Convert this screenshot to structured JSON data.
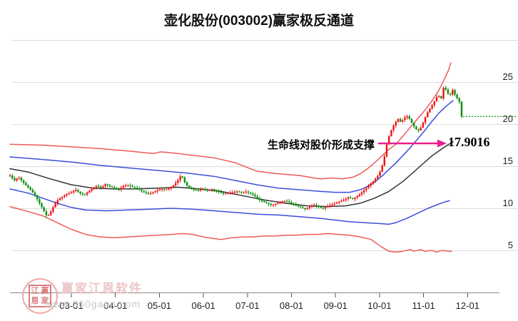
{
  "window": {
    "title": "壶化股份(003002)赢家极反通道"
  },
  "chart_data": {
    "type": "candlestick",
    "title": "壶化股份(003002)赢家极反通道",
    "symbol": "壶化股份",
    "code": "003002",
    "indicator": "赢家极反通道",
    "y_axis": {
      "ticks": [
        25,
        20,
        15,
        10,
        5
      ],
      "unlabeled_gridlines": [
        30
      ],
      "range": [
        0,
        30
      ]
    },
    "x_axis": {
      "labels": [
        "03-01",
        "04-01",
        "05-01",
        "06-01",
        "07-01",
        "08-01",
        "09-01",
        "10-01",
        "11-01",
        "12-01"
      ]
    },
    "last_price": 20.9,
    "annotation": {
      "text": "生命线对股价形成支撑",
      "value": "17.9016",
      "arrow_color": "#eb1e8c"
    },
    "price_path": [
      [
        14,
        13.9
      ],
      [
        20,
        13.3
      ],
      [
        26,
        13.7
      ],
      [
        32,
        13.1
      ],
      [
        38,
        12.6
      ],
      [
        44,
        12.1
      ],
      [
        50,
        11.4
      ],
      [
        56,
        10.5
      ],
      [
        62,
        9.6
      ],
      [
        66,
        9.0
      ],
      [
        70,
        9.4
      ],
      [
        76,
        10.4
      ],
      [
        82,
        11.1
      ],
      [
        88,
        11.4
      ],
      [
        94,
        11.7
      ],
      [
        100,
        11.9
      ],
      [
        106,
        12.2
      ],
      [
        112,
        11.8
      ],
      [
        118,
        11.6
      ],
      [
        124,
        12.0
      ],
      [
        130,
        12.4
      ],
      [
        136,
        12.7
      ],
      [
        142,
        12.4
      ],
      [
        148,
        12.9
      ],
      [
        154,
        12.6
      ],
      [
        160,
        12.4
      ],
      [
        166,
        12.2
      ],
      [
        172,
        12.6
      ],
      [
        178,
        12.8
      ],
      [
        184,
        12.6
      ],
      [
        190,
        12.4
      ],
      [
        196,
        12.2
      ],
      [
        202,
        11.9
      ],
      [
        208,
        11.7
      ],
      [
        214,
        11.9
      ],
      [
        220,
        12.1
      ],
      [
        226,
        12.3
      ],
      [
        232,
        12.2
      ],
      [
        238,
        12.4
      ],
      [
        244,
        12.8
      ],
      [
        250,
        13.4
      ],
      [
        254,
        14.0
      ],
      [
        258,
        13.2
      ],
      [
        262,
        12.7
      ],
      [
        266,
        12.4
      ],
      [
        272,
        12.2
      ],
      [
        278,
        12.1
      ],
      [
        284,
        12.3
      ],
      [
        290,
        12.1
      ],
      [
        296,
        12.3
      ],
      [
        302,
        12.1
      ],
      [
        308,
        11.9
      ],
      [
        314,
        11.7
      ],
      [
        320,
        11.8
      ],
      [
        326,
        11.9
      ],
      [
        332,
        12.0
      ],
      [
        338,
        11.9
      ],
      [
        344,
        12.0
      ],
      [
        350,
        11.8
      ],
      [
        356,
        11.5
      ],
      [
        362,
        11.1
      ],
      [
        368,
        10.8
      ],
      [
        374,
        10.6
      ],
      [
        380,
        10.4
      ],
      [
        386,
        10.5
      ],
      [
        392,
        10.7
      ],
      [
        398,
        10.9
      ],
      [
        404,
        10.8
      ],
      [
        410,
        10.5
      ],
      [
        416,
        10.3
      ],
      [
        422,
        10.1
      ],
      [
        428,
        9.9
      ],
      [
        434,
        10.2
      ],
      [
        440,
        10.4
      ],
      [
        446,
        10.2
      ],
      [
        452,
        10.0
      ],
      [
        458,
        10.2
      ],
      [
        464,
        10.4
      ],
      [
        470,
        10.6
      ],
      [
        476,
        10.8
      ],
      [
        482,
        11.0
      ],
      [
        488,
        11.3
      ],
      [
        494,
        11.1
      ],
      [
        500,
        11.4
      ],
      [
        506,
        11.8
      ],
      [
        512,
        12.3
      ],
      [
        518,
        12.8
      ],
      [
        524,
        13.3
      ],
      [
        530,
        13.9
      ],
      [
        534,
        14.6
      ],
      [
        538,
        15.8
      ],
      [
        542,
        17.6
      ],
      [
        546,
        18.8
      ],
      [
        550,
        19.6
      ],
      [
        554,
        20.2
      ],
      [
        558,
        20.6
      ],
      [
        562,
        20.2
      ],
      [
        566,
        20.7
      ],
      [
        570,
        21.0
      ],
      [
        574,
        20.6
      ],
      [
        578,
        20.0
      ],
      [
        582,
        19.5
      ],
      [
        586,
        19.2
      ],
      [
        590,
        19.6
      ],
      [
        594,
        20.4
      ],
      [
        598,
        21.2
      ],
      [
        602,
        21.8
      ],
      [
        606,
        22.3
      ],
      [
        610,
        22.9
      ],
      [
        614,
        23.5
      ],
      [
        618,
        22.9
      ],
      [
        622,
        24.5
      ],
      [
        626,
        23.9
      ],
      [
        630,
        23.3
      ],
      [
        634,
        24.1
      ],
      [
        638,
        23.4
      ],
      [
        642,
        22.9
      ],
      [
        645,
        22.5
      ],
      [
        647,
        20.9
      ]
    ],
    "lines": {
      "upper_red": [
        [
          14,
          17.6
        ],
        [
          60,
          17.5
        ],
        [
          100,
          17.3
        ],
        [
          140,
          17.1
        ],
        [
          180,
          16.8
        ],
        [
          215,
          16.5
        ],
        [
          225,
          16.7
        ],
        [
          240,
          16.6
        ],
        [
          270,
          16.3
        ],
        [
          300,
          16.0
        ],
        [
          330,
          15.4
        ],
        [
          345,
          14.9
        ],
        [
          360,
          14.4
        ],
        [
          390,
          14.1
        ],
        [
          420,
          13.9
        ],
        [
          440,
          13.6
        ],
        [
          450,
          13.5
        ],
        [
          465,
          13.6
        ],
        [
          480,
          13.5
        ],
        [
          495,
          13.7
        ],
        [
          505,
          14.1
        ],
        [
          515,
          14.7
        ],
        [
          525,
          15.4
        ],
        [
          535,
          16.2
        ],
        [
          545,
          17.0
        ],
        [
          555,
          17.6
        ],
        [
          565,
          18.6
        ],
        [
          575,
          19.6
        ],
        [
          585,
          20.6
        ],
        [
          595,
          21.6
        ],
        [
          605,
          22.7
        ],
        [
          615,
          24.0
        ],
        [
          622,
          25.2
        ],
        [
          628,
          26.3
        ],
        [
          632,
          27.3
        ]
      ],
      "upper_blue": [
        [
          14,
          16.1
        ],
        [
          60,
          15.8
        ],
        [
          100,
          15.5
        ],
        [
          140,
          15.1
        ],
        [
          180,
          14.8
        ],
        [
          220,
          14.5
        ],
        [
          260,
          14.2
        ],
        [
          300,
          13.8
        ],
        [
          330,
          13.3
        ],
        [
          360,
          12.8
        ],
        [
          390,
          12.4
        ],
        [
          420,
          12.2
        ],
        [
          450,
          12.0
        ],
        [
          470,
          11.9
        ],
        [
          490,
          11.9
        ],
        [
          505,
          12.2
        ],
        [
          515,
          12.6
        ],
        [
          525,
          13.1
        ],
        [
          535,
          13.8
        ],
        [
          545,
          14.6
        ],
        [
          555,
          15.4
        ],
        [
          565,
          16.3
        ],
        [
          575,
          17.2
        ],
        [
          585,
          18.2
        ],
        [
          595,
          19.2
        ],
        [
          605,
          20.3
        ],
        [
          615,
          21.3
        ],
        [
          625,
          22.1
        ],
        [
          635,
          22.8
        ]
      ],
      "life_line": [
        [
          14,
          14.7
        ],
        [
          40,
          14.3
        ],
        [
          70,
          13.5
        ],
        [
          100,
          12.8
        ],
        [
          130,
          12.4
        ],
        [
          160,
          12.3
        ],
        [
          190,
          12.3
        ],
        [
          220,
          12.4
        ],
        [
          250,
          12.5
        ],
        [
          280,
          12.3
        ],
        [
          310,
          12.0
        ],
        [
          340,
          11.5
        ],
        [
          370,
          11.0
        ],
        [
          400,
          10.6
        ],
        [
          430,
          10.3
        ],
        [
          460,
          10.2
        ],
        [
          485,
          10.3
        ],
        [
          505,
          10.6
        ],
        [
          525,
          11.2
        ],
        [
          545,
          12.0
        ],
        [
          565,
          13.2
        ],
        [
          585,
          14.7
        ],
        [
          605,
          16.2
        ],
        [
          625,
          17.4
        ],
        [
          635,
          17.9
        ]
      ],
      "lower_blue": [
        [
          14,
          12.3
        ],
        [
          40,
          11.8
        ],
        [
          60,
          11.2
        ],
        [
          80,
          10.6
        ],
        [
          100,
          10.1
        ],
        [
          120,
          9.8
        ],
        [
          150,
          9.7
        ],
        [
          180,
          9.8
        ],
        [
          210,
          9.9
        ],
        [
          240,
          10.0
        ],
        [
          270,
          9.9
        ],
        [
          300,
          9.7
        ],
        [
          330,
          9.5
        ],
        [
          360,
          9.3
        ],
        [
          390,
          9.2
        ],
        [
          420,
          9.0
        ],
        [
          450,
          8.8
        ],
        [
          470,
          8.6
        ],
        [
          490,
          8.4
        ],
        [
          510,
          8.3
        ],
        [
          530,
          8.2
        ],
        [
          545,
          8.1
        ],
        [
          555,
          8.3
        ],
        [
          570,
          8.8
        ],
        [
          585,
          9.4
        ],
        [
          600,
          10.0
        ],
        [
          615,
          10.5
        ],
        [
          625,
          10.8
        ],
        [
          630,
          10.9
        ]
      ],
      "lower_red": [
        [
          14,
          10.2
        ],
        [
          40,
          9.6
        ],
        [
          60,
          9.1
        ],
        [
          80,
          8.3
        ],
        [
          100,
          7.5
        ],
        [
          120,
          6.9
        ],
        [
          140,
          6.6
        ],
        [
          160,
          6.5
        ],
        [
          180,
          6.6
        ],
        [
          200,
          6.7
        ],
        [
          220,
          6.8
        ],
        [
          240,
          6.9
        ],
        [
          255,
          7.0
        ],
        [
          270,
          6.9
        ],
        [
          285,
          6.6
        ],
        [
          300,
          6.4
        ],
        [
          310,
          6.3
        ],
        [
          325,
          6.5
        ],
        [
          340,
          6.6
        ],
        [
          355,
          6.6
        ],
        [
          370,
          6.7
        ],
        [
          385,
          6.7
        ],
        [
          400,
          6.8
        ],
        [
          415,
          6.8
        ],
        [
          430,
          6.9
        ],
        [
          445,
          6.9
        ],
        [
          460,
          7.0
        ],
        [
          475,
          6.9
        ],
        [
          490,
          6.8
        ],
        [
          505,
          6.6
        ],
        [
          520,
          6.3
        ],
        [
          535,
          5.4
        ],
        [
          545,
          4.9
        ],
        [
          555,
          4.8
        ],
        [
          565,
          4.9
        ],
        [
          575,
          5.1
        ],
        [
          580,
          4.9
        ],
        [
          590,
          5.1
        ],
        [
          595,
          4.9
        ],
        [
          605,
          5.0
        ],
        [
          612,
          4.8
        ],
        [
          620,
          5.0
        ],
        [
          628,
          4.9
        ],
        [
          633,
          4.9
        ]
      ]
    },
    "colors": {
      "candle_up": "#ee1111",
      "candle_down": "#0a8f0a",
      "channel_red": "#f05a5a",
      "channel_blue": "#3a4fd8",
      "life_line": "#333333",
      "last_price_line": "#00a000",
      "grid": "#dcdcdc",
      "axis": "#888888",
      "tick_text": "#222222"
    }
  },
  "watermark": {
    "brand": "赢家江恩软件",
    "url": "www.360gann.com",
    "logo_chars": [
      "江",
      "赢",
      "恩",
      "家"
    ]
  }
}
